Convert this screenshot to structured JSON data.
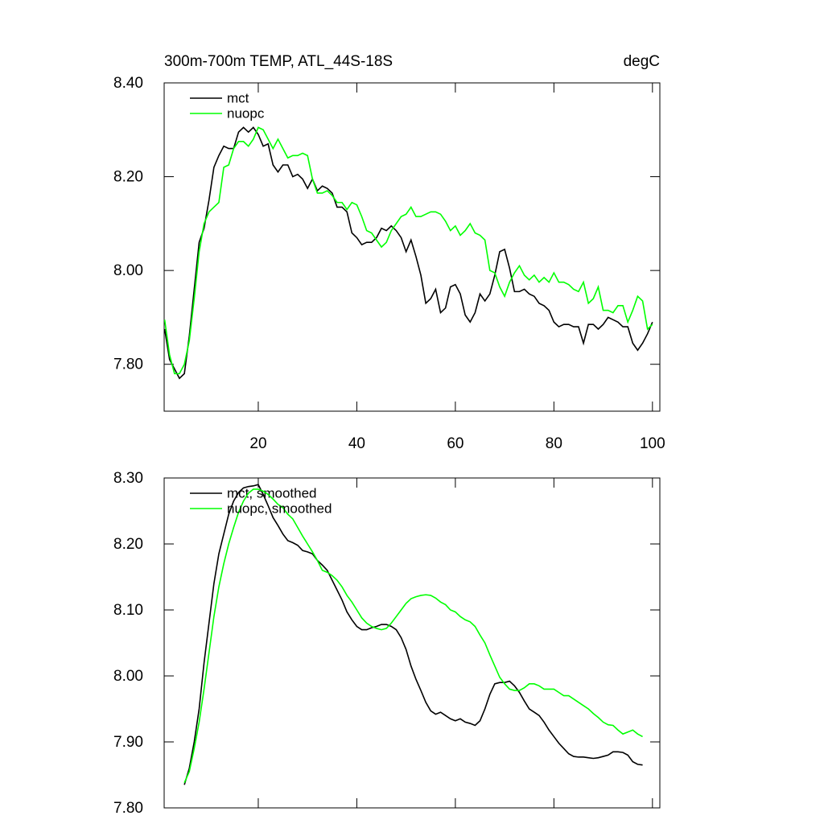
{
  "chart_data": [
    {
      "type": "line",
      "title": "300m-700m TEMP, ATL_44S-18S",
      "units_label": "degC",
      "x": [
        1,
        2,
        3,
        4,
        5,
        6,
        7,
        8,
        9,
        10,
        11,
        12,
        13,
        14,
        15,
        16,
        17,
        18,
        19,
        20,
        21,
        22,
        23,
        24,
        25,
        26,
        27,
        28,
        29,
        30,
        31,
        32,
        33,
        34,
        35,
        36,
        37,
        38,
        39,
        40,
        41,
        42,
        43,
        44,
        45,
        46,
        47,
        48,
        49,
        50,
        51,
        52,
        53,
        54,
        55,
        56,
        57,
        58,
        59,
        60,
        61,
        62,
        63,
        64,
        65,
        66,
        67,
        68,
        69,
        70,
        71,
        72,
        73,
        74,
        75,
        76,
        77,
        78,
        79,
        80,
        81,
        82,
        83,
        84,
        85,
        86,
        87,
        88,
        89,
        90,
        91,
        92,
        93,
        94,
        95,
        96,
        97,
        98,
        99,
        100
      ],
      "xlim": [
        0.9,
        101.5
      ],
      "xticks": [
        20,
        40,
        60,
        80,
        100
      ],
      "ylim": [
        7.7,
        8.4
      ],
      "yticks": [
        {
          "value": 7.8,
          "label": "7.80"
        },
        {
          "value": 8.0,
          "label": "8.00"
        },
        {
          "value": 8.2,
          "label": "8.20"
        },
        {
          "value": 8.4,
          "label": "8.40"
        }
      ],
      "legend": "upper left",
      "series": [
        {
          "name": "mct",
          "color": "#000000",
          "values": [
            7.875,
            7.81,
            7.79,
            7.77,
            7.78,
            7.86,
            7.96,
            8.06,
            8.09,
            8.15,
            8.22,
            8.245,
            8.265,
            8.26,
            8.26,
            8.295,
            8.305,
            8.295,
            8.305,
            8.29,
            8.265,
            8.27,
            8.225,
            8.21,
            8.225,
            8.225,
            8.2,
            8.205,
            8.195,
            8.175,
            8.195,
            8.17,
            8.18,
            8.175,
            8.165,
            8.135,
            8.135,
            8.125,
            8.08,
            8.07,
            8.055,
            8.06,
            8.06,
            8.07,
            8.09,
            8.085,
            8.095,
            8.085,
            8.07,
            8.04,
            8.065,
            8.03,
            7.99,
            7.93,
            7.94,
            7.96,
            7.91,
            7.92,
            7.965,
            7.97,
            7.95,
            7.905,
            7.89,
            7.91,
            7.95,
            7.935,
            7.95,
            7.99,
            8.04,
            8.045,
            8.005,
            7.955,
            7.955,
            7.96,
            7.95,
            7.945,
            7.93,
            7.925,
            7.915,
            7.89,
            7.88,
            7.885,
            7.885,
            7.88,
            7.88,
            7.845,
            7.885,
            7.885,
            7.875,
            7.885,
            7.9,
            7.895,
            7.89,
            7.88,
            7.88,
            7.845,
            7.83,
            7.845,
            7.865,
            7.89
          ]
        },
        {
          "name": "nuopc",
          "color": "#00ff00",
          "values": [
            7.895,
            7.82,
            7.78,
            7.78,
            7.8,
            7.85,
            7.94,
            8.04,
            8.1,
            8.125,
            8.135,
            8.145,
            8.22,
            8.225,
            8.26,
            8.275,
            8.275,
            8.265,
            8.28,
            8.305,
            8.3,
            8.28,
            8.26,
            8.28,
            8.26,
            8.24,
            8.245,
            8.245,
            8.25,
            8.245,
            8.195,
            8.165,
            8.165,
            8.17,
            8.16,
            8.145,
            8.145,
            8.13,
            8.145,
            8.14,
            8.115,
            8.085,
            8.08,
            8.065,
            8.05,
            8.06,
            8.085,
            8.1,
            8.115,
            8.12,
            8.135,
            8.115,
            8.115,
            8.12,
            8.125,
            8.125,
            8.12,
            8.105,
            8.085,
            8.095,
            8.075,
            8.085,
            8.1,
            8.08,
            8.075,
            8.065,
            8.0,
            7.995,
            7.965,
            7.945,
            7.975,
            7.995,
            8.01,
            7.99,
            7.98,
            7.99,
            7.975,
            7.985,
            7.975,
            7.995,
            7.975,
            7.975,
            7.97,
            7.96,
            7.955,
            7.975,
            7.93,
            7.94,
            7.965,
            7.915,
            7.915,
            7.91,
            7.925,
            7.925,
            7.89,
            7.915,
            7.945,
            7.935,
            7.875,
            7.885
          ]
        }
      ]
    },
    {
      "type": "line",
      "x": [
        1,
        2,
        3,
        4,
        5,
        6,
        7,
        8,
        9,
        10,
        11,
        12,
        13,
        14,
        15,
        16,
        17,
        18,
        19,
        20,
        21,
        22,
        23,
        24,
        25,
        26,
        27,
        28,
        29,
        30,
        31,
        32,
        33,
        34,
        35,
        36,
        37,
        38,
        39,
        40,
        41,
        42,
        43,
        44,
        45,
        46,
        47,
        48,
        49,
        50,
        51,
        52,
        53,
        54,
        55,
        56,
        57,
        58,
        59,
        60,
        61,
        62,
        63,
        64,
        65,
        66,
        67,
        68,
        69,
        70,
        71,
        72,
        73,
        74,
        75,
        76,
        77,
        78,
        79,
        80,
        81,
        82,
        83,
        84,
        85,
        86,
        87,
        88,
        89,
        90,
        91,
        92,
        93,
        94,
        95,
        96,
        97,
        98,
        99,
        100
      ],
      "xlim": [
        0.9,
        101.5
      ],
      "xticks": [
        20,
        40,
        60,
        80,
        100
      ],
      "ylim": [
        7.8,
        8.3
      ],
      "yticks": [
        {
          "value": 7.8,
          "label": "7.80"
        },
        {
          "value": 7.9,
          "label": "7.90"
        },
        {
          "value": 8.0,
          "label": "8.00"
        },
        {
          "value": 8.1,
          "label": "8.10"
        },
        {
          "value": 8.2,
          "label": "8.20"
        },
        {
          "value": 8.3,
          "label": "8.30"
        }
      ],
      "legend": "upper left",
      "series": [
        {
          "name": "mct, smoothed",
          "color": "#000000",
          "values": [
            null,
            null,
            null,
            null,
            7.835,
            7.86,
            7.9,
            7.95,
            8.02,
            8.08,
            8.14,
            8.185,
            8.215,
            8.245,
            8.265,
            8.278,
            8.285,
            8.287,
            8.288,
            8.29,
            8.275,
            8.258,
            8.24,
            8.228,
            8.215,
            8.205,
            8.202,
            8.198,
            8.19,
            8.188,
            8.185,
            8.175,
            8.168,
            8.16,
            8.145,
            8.13,
            8.115,
            8.097,
            8.085,
            8.075,
            8.07,
            8.07,
            8.073,
            8.075,
            8.078,
            8.078,
            8.075,
            8.07,
            8.058,
            8.04,
            8.015,
            7.995,
            7.978,
            7.96,
            7.947,
            7.942,
            7.945,
            7.94,
            7.935,
            7.932,
            7.935,
            7.93,
            7.928,
            7.925,
            7.932,
            7.95,
            7.972,
            7.988,
            7.99,
            7.99,
            7.992,
            7.985,
            7.975,
            7.962,
            7.95,
            7.945,
            7.94,
            7.93,
            7.918,
            7.908,
            7.898,
            7.89,
            7.882,
            7.878,
            7.877,
            7.877,
            7.876,
            7.875,
            7.876,
            7.878,
            7.88,
            7.885,
            7.885,
            7.884,
            7.88,
            7.87,
            7.866,
            7.865,
            null,
            null
          ]
        },
        {
          "name": "nuopc, smoothed",
          "color": "#00ff00",
          "values": [
            null,
            null,
            null,
            null,
            7.838,
            7.855,
            7.89,
            7.93,
            7.98,
            8.035,
            8.09,
            8.135,
            8.17,
            8.2,
            8.225,
            8.248,
            8.265,
            8.277,
            8.283,
            8.283,
            8.28,
            8.275,
            8.268,
            8.26,
            8.255,
            8.245,
            8.238,
            8.225,
            8.212,
            8.2,
            8.188,
            8.175,
            8.16,
            8.157,
            8.152,
            8.145,
            8.135,
            8.122,
            8.112,
            8.1,
            8.088,
            8.08,
            8.075,
            8.072,
            8.07,
            8.072,
            8.08,
            8.09,
            8.1,
            8.11,
            8.117,
            8.12,
            8.122,
            8.123,
            8.122,
            8.118,
            8.112,
            8.108,
            8.1,
            8.097,
            8.09,
            8.085,
            8.082,
            8.075,
            8.062,
            8.05,
            8.032,
            8.015,
            7.998,
            7.988,
            7.98,
            7.978,
            7.978,
            7.982,
            7.988,
            7.988,
            7.985,
            7.98,
            7.98,
            7.98,
            7.975,
            7.97,
            7.97,
            7.965,
            7.96,
            7.955,
            7.95,
            7.943,
            7.937,
            7.93,
            7.926,
            7.925,
            7.918,
            7.912,
            7.915,
            7.918,
            7.912,
            7.908,
            null,
            null
          ]
        }
      ]
    }
  ]
}
